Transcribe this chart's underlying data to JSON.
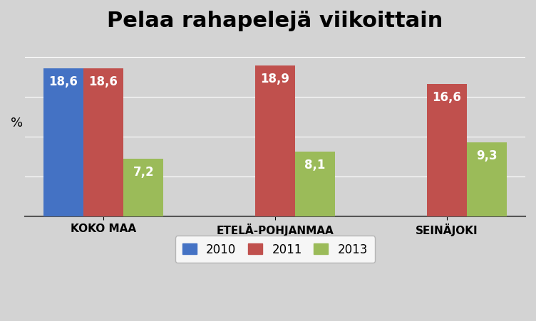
{
  "title": "Pelaa rahapelejä viikoittain",
  "categories": [
    "KOKO MAA",
    "ETELÄ-POHJANMAA",
    "SEINÄJOKI"
  ],
  "series": {
    "2010": [
      18.6,
      0,
      0
    ],
    "2011": [
      18.6,
      18.9,
      16.6
    ],
    "2013": [
      7.2,
      8.1,
      9.3
    ]
  },
  "colors": {
    "2010": "#4472C4",
    "2011": "#C0504D",
    "2013": "#9BBB59"
  },
  "ylabel": "%",
  "ylim": [
    0,
    22
  ],
  "bar_label_fontsize": 12,
  "title_fontsize": 22,
  "legend_fontsize": 12,
  "tick_fontsize": 11,
  "ylabel_fontsize": 13,
  "background_color": "#D3D3D3",
  "plot_background_color": "#D3D3D3",
  "bar_width": 0.28,
  "group_positions": [
    0.45,
    1.65,
    2.85
  ]
}
